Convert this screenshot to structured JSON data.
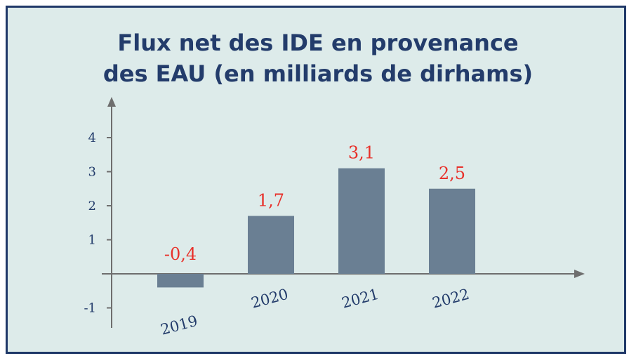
{
  "chart_data": {
    "type": "bar",
    "title_lines": [
      "Flux net des IDE en provenance",
      "des EAU (en milliards de dirhams)"
    ],
    "categories": [
      "2019",
      "2020",
      "2021",
      "2022"
    ],
    "values": [
      -0.4,
      1.7,
      3.1,
      2.5
    ],
    "value_labels": [
      "-0,4",
      "1,7",
      "3,1",
      "2,5"
    ],
    "y_ticks": [
      4,
      3,
      2,
      1,
      -1
    ],
    "y_tick_labels": [
      "4",
      "3",
      "2",
      "1",
      "-1"
    ],
    "ylim": [
      -1.5,
      5
    ],
    "grid": false,
    "colors": {
      "bar": "#6a7f93",
      "value_label": "#e8302a",
      "axis": "#6e6e6e",
      "text": "#233c6b",
      "background": "#ddebea",
      "border": "#1f3868"
    }
  }
}
